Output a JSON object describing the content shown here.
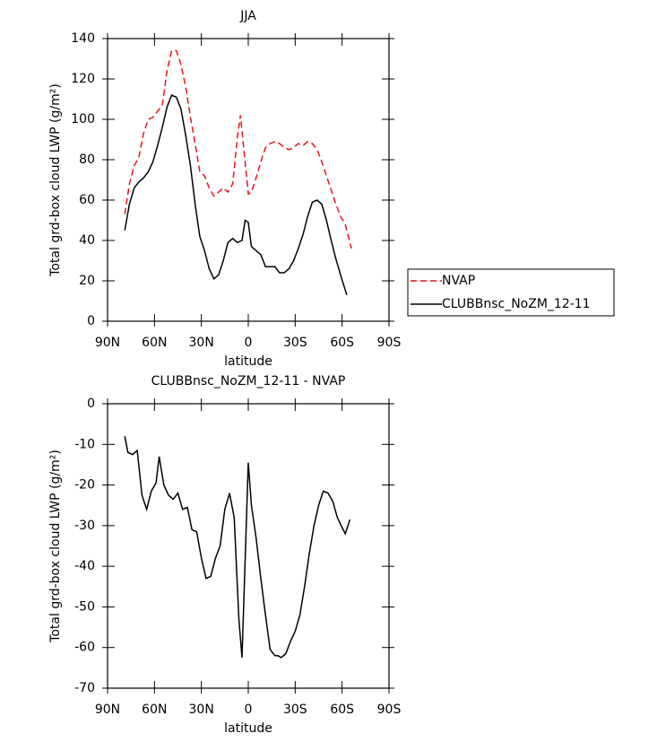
{
  "chart_data": [
    {
      "type": "line",
      "title": "JJA",
      "xlabel": "latitude",
      "ylabel": "Total grd-box cloud LWP (g/m²)",
      "xlim": [
        90,
        -90
      ],
      "ylim": [
        0,
        140
      ],
      "xticks": [
        {
          "value": 90,
          "label": "90N"
        },
        {
          "value": 60,
          "label": "60N"
        },
        {
          "value": 30,
          "label": "30N"
        },
        0,
        {
          "value": -30,
          "label": "30S"
        },
        {
          "value": -60,
          "label": "60S"
        },
        {
          "value": -90,
          "label": "90S"
        }
      ],
      "yticks": [
        0,
        20,
        40,
        60,
        80,
        100,
        120,
        140
      ],
      "legend": "outside right",
      "series": [
        {
          "name": "NVAP",
          "color": "#e8141e",
          "line_style": "dashed",
          "x": [
            79,
            76,
            73,
            70,
            67,
            64,
            61,
            58,
            55,
            52,
            49,
            46,
            43,
            40,
            37,
            34,
            31,
            28,
            25,
            22,
            19,
            16,
            13,
            10,
            7,
            5,
            3,
            0,
            -2,
            -5,
            -8,
            -11,
            -14,
            -17,
            -20,
            -23,
            -26,
            -29,
            -32,
            -35,
            -38,
            -41,
            -44,
            -47,
            -50,
            -53,
            -56,
            -59,
            -62,
            -66
          ],
          "values": [
            53,
            68,
            77,
            81,
            93,
            100,
            101,
            104,
            107,
            124,
            134,
            134,
            127,
            116,
            101,
            88,
            74,
            72,
            66,
            62,
            64,
            66,
            64,
            68,
            91,
            102,
            86,
            63,
            64,
            71,
            79,
            86,
            88,
            89,
            88,
            86,
            85,
            86,
            88,
            87,
            89,
            88,
            85,
            79,
            72,
            65,
            58,
            52,
            48,
            36
          ]
        },
        {
          "name": "CLUBBnsc_NoZM_12-11",
          "color": "#000000",
          "line_style": "solid",
          "x": [
            79,
            76,
            73,
            70,
            67,
            64,
            61,
            58,
            55,
            52,
            49,
            46,
            43,
            40,
            37,
            34,
            31,
            28,
            25,
            22,
            19,
            16,
            13,
            10,
            7,
            4,
            2,
            0,
            -2,
            -5,
            -8,
            -11,
            -14,
            -17,
            -20,
            -23,
            -26,
            -29,
            -32,
            -35,
            -38,
            -41,
            -44,
            -47,
            -50,
            -53,
            -56,
            -59,
            -63
          ],
          "values": [
            45,
            58,
            66,
            69,
            71,
            74,
            79,
            87,
            96,
            106,
            112,
            111,
            105,
            92,
            77,
            58,
            42,
            35,
            26,
            21,
            23,
            30,
            39,
            41,
            39,
            40,
            50,
            49,
            37,
            35,
            33,
            27,
            27,
            27,
            24,
            24,
            26,
            30,
            36,
            43,
            52,
            59,
            60,
            58,
            50,
            40,
            31,
            23,
            13
          ]
        }
      ]
    },
    {
      "type": "line",
      "title": "CLUBBnsc_NoZM_12-11 - NVAP",
      "xlabel": "latitude",
      "ylabel": "Total grd-box cloud LWP (g/m²)",
      "xlim": [
        90,
        -90
      ],
      "ylim": [
        -70,
        0
      ],
      "xticks": [
        {
          "value": 90,
          "label": "90N"
        },
        {
          "value": 60,
          "label": "60N"
        },
        {
          "value": 30,
          "label": "30N"
        },
        0,
        {
          "value": -30,
          "label": "30S"
        },
        {
          "value": -60,
          "label": "60S"
        },
        {
          "value": -90,
          "label": "90S"
        }
      ],
      "yticks": [
        -70,
        -60,
        -50,
        -40,
        -30,
        -20,
        -10,
        0
      ],
      "series": [
        {
          "color": "#000000",
          "line_style": "solid",
          "x": [
            79,
            77,
            74,
            71,
            68,
            65,
            62,
            59,
            57,
            54,
            51,
            48,
            45,
            42,
            39,
            36,
            33,
            30,
            27,
            24,
            21,
            18,
            15,
            12,
            9,
            6,
            4,
            0,
            -2,
            -5,
            -8,
            -11,
            -14,
            -17,
            -19,
            -21,
            -24,
            -27,
            -30,
            -33,
            -36,
            -39,
            -42,
            -45,
            -48,
            -51,
            -54,
            -57,
            -60,
            -62,
            -65
          ],
          "values": [
            -8,
            -12,
            -12.5,
            -11.5,
            -22.5,
            -26,
            -21.5,
            -19.5,
            -13,
            -20,
            -22.5,
            -23.5,
            -22,
            -26,
            -25.5,
            -31,
            -31.5,
            -38,
            -43,
            -42.5,
            -38,
            -35,
            -26,
            -22,
            -28,
            -53,
            -62.5,
            -14.5,
            -25,
            -33,
            -43,
            -52,
            -60.5,
            -62,
            -62,
            -62.5,
            -61.5,
            -58.5,
            -56,
            -52,
            -45,
            -37,
            -30,
            -25,
            -21.5,
            -22,
            -24,
            -28,
            -30.5,
            -32,
            -28.5
          ]
        }
      ]
    }
  ]
}
